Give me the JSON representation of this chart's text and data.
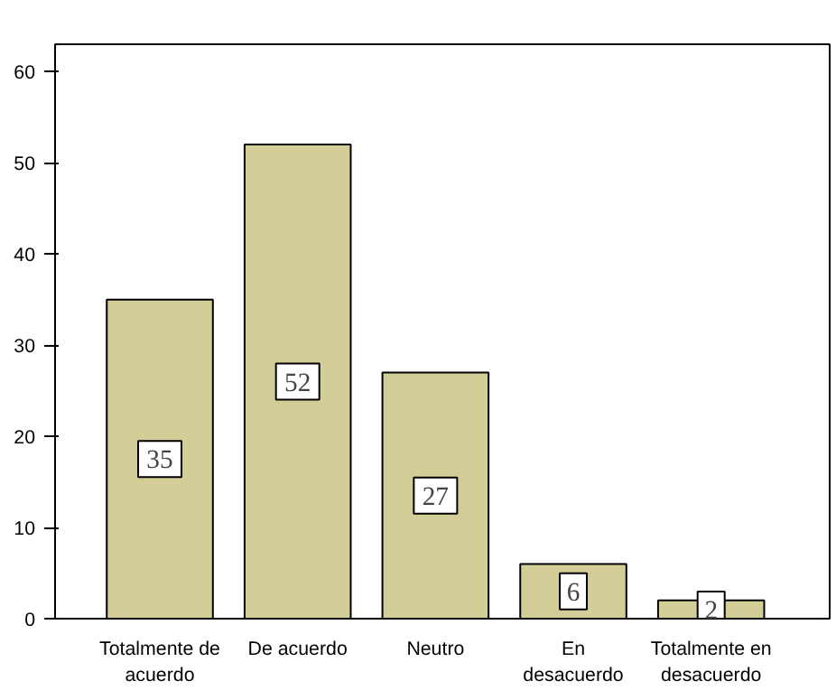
{
  "chart_data": {
    "type": "bar",
    "categories": [
      "Totalmente de acuerdo",
      "De acuerdo",
      "Neutro",
      "En desacuerdo",
      "Totalmente en desacuerdo"
    ],
    "values": [
      35,
      52,
      27,
      6,
      2
    ],
    "color": "#d3ce98",
    "ylim": [
      0,
      63
    ],
    "yticks": [
      0,
      10,
      20,
      30,
      40,
      50,
      60
    ],
    "grid": false,
    "data_labels": true
  }
}
